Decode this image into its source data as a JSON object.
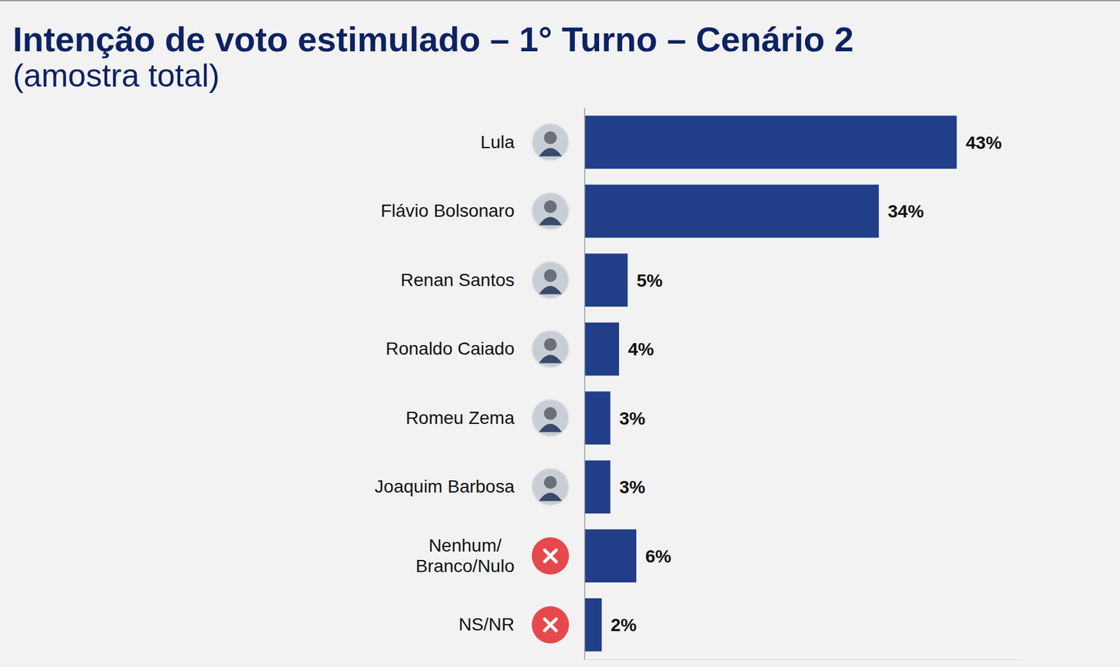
{
  "chart_data": {
    "type": "bar",
    "orientation": "horizontal",
    "title": "Intenção de voto estimulado – 1° Turno – Cenário 2",
    "subtitle": "(amostra total)",
    "categories": [
      "Lula",
      "Flávio Bolsonaro",
      "Renan Santos",
      "Ronaldo Caiado",
      "Romeu Zema",
      "Joaquim Barbosa",
      "Nenhum/Branco/Nulo",
      "NS/NR"
    ],
    "values": [
      43,
      34,
      5,
      4,
      3,
      3,
      6,
      2
    ],
    "value_labels": [
      "43%",
      "34%",
      "5%",
      "4%",
      "3%",
      "3%",
      "6%",
      "2%"
    ],
    "color": "#213f88",
    "xlim": [
      0,
      50
    ],
    "data_labels": true,
    "tick_labels": "y",
    "grid": false
  }
}
